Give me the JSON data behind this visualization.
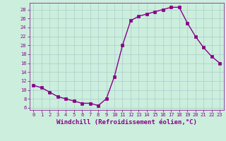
{
  "x": [
    0,
    1,
    2,
    3,
    4,
    5,
    6,
    7,
    8,
    9,
    10,
    11,
    12,
    13,
    14,
    15,
    16,
    17,
    18,
    19,
    20,
    21,
    22,
    23
  ],
  "y": [
    11,
    10.5,
    9.5,
    8.5,
    8,
    7.5,
    7,
    7,
    6.5,
    8,
    13,
    20,
    25.5,
    26.5,
    27,
    27.5,
    28,
    28.5,
    28.5,
    25,
    22,
    19.5,
    17.5,
    16
  ],
  "line_color": "#880088",
  "marker": "s",
  "markersize": 2.5,
  "linewidth": 1.0,
  "xlabel": "Windchill (Refroidissement éolien,°C)",
  "xlabel_color": "#880088",
  "xlabel_fontsize": 6.5,
  "ylabel_ticks": [
    6,
    8,
    10,
    12,
    14,
    16,
    18,
    20,
    22,
    24,
    26,
    28
  ],
  "xticks": [
    0,
    1,
    2,
    3,
    4,
    5,
    6,
    7,
    8,
    9,
    10,
    11,
    12,
    13,
    14,
    15,
    16,
    17,
    18,
    19,
    20,
    21,
    22,
    23
  ],
  "xlim": [
    -0.5,
    23.5
  ],
  "ylim": [
    5.5,
    29.5
  ],
  "background_color": "#cceedd",
  "grid_color": "#aacccc",
  "tick_color": "#880088",
  "tick_fontsize": 5.0
}
